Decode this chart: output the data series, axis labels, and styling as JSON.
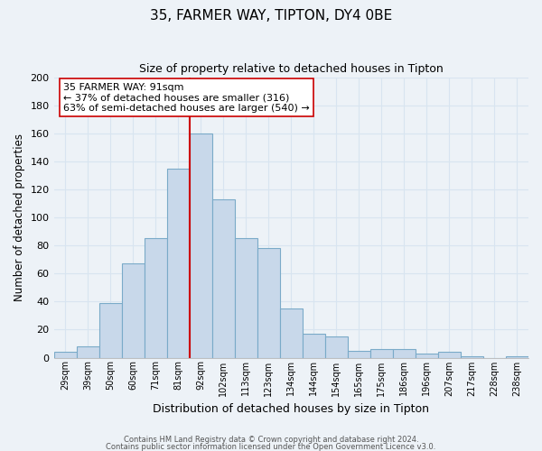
{
  "title": "35, FARMER WAY, TIPTON, DY4 0BE",
  "subtitle": "Size of property relative to detached houses in Tipton",
  "xlabel": "Distribution of detached houses by size in Tipton",
  "ylabel": "Number of detached properties",
  "bar_labels": [
    "29sqm",
    "39sqm",
    "50sqm",
    "60sqm",
    "71sqm",
    "81sqm",
    "92sqm",
    "102sqm",
    "113sqm",
    "123sqm",
    "134sqm",
    "144sqm",
    "154sqm",
    "165sqm",
    "175sqm",
    "186sqm",
    "196sqm",
    "207sqm",
    "217sqm",
    "228sqm",
    "238sqm"
  ],
  "bar_heights": [
    4,
    8,
    39,
    67,
    85,
    135,
    160,
    113,
    85,
    78,
    35,
    17,
    15,
    5,
    6,
    6,
    3,
    4,
    1,
    0,
    1
  ],
  "bar_color": "#c8d8ea",
  "bar_edge_color": "#7aaac8",
  "vline_color": "#cc0000",
  "vline_x_index": 6,
  "ylim": [
    0,
    200
  ],
  "yticks": [
    0,
    20,
    40,
    60,
    80,
    100,
    120,
    140,
    160,
    180,
    200
  ],
  "annotation_title": "35 FARMER WAY: 91sqm",
  "annotation_line1": "← 37% of detached houses are smaller (316)",
  "annotation_line2": "63% of semi-detached houses are larger (540) →",
  "annotation_box_color": "#ffffff",
  "annotation_box_edge": "#cc0000",
  "footer1": "Contains HM Land Registry data © Crown copyright and database right 2024.",
  "footer2": "Contains public sector information licensed under the Open Government Licence v3.0.",
  "background_color": "#edf2f7",
  "grid_color": "#d8e4f0",
  "plot_bg_color": "#edf2f7"
}
